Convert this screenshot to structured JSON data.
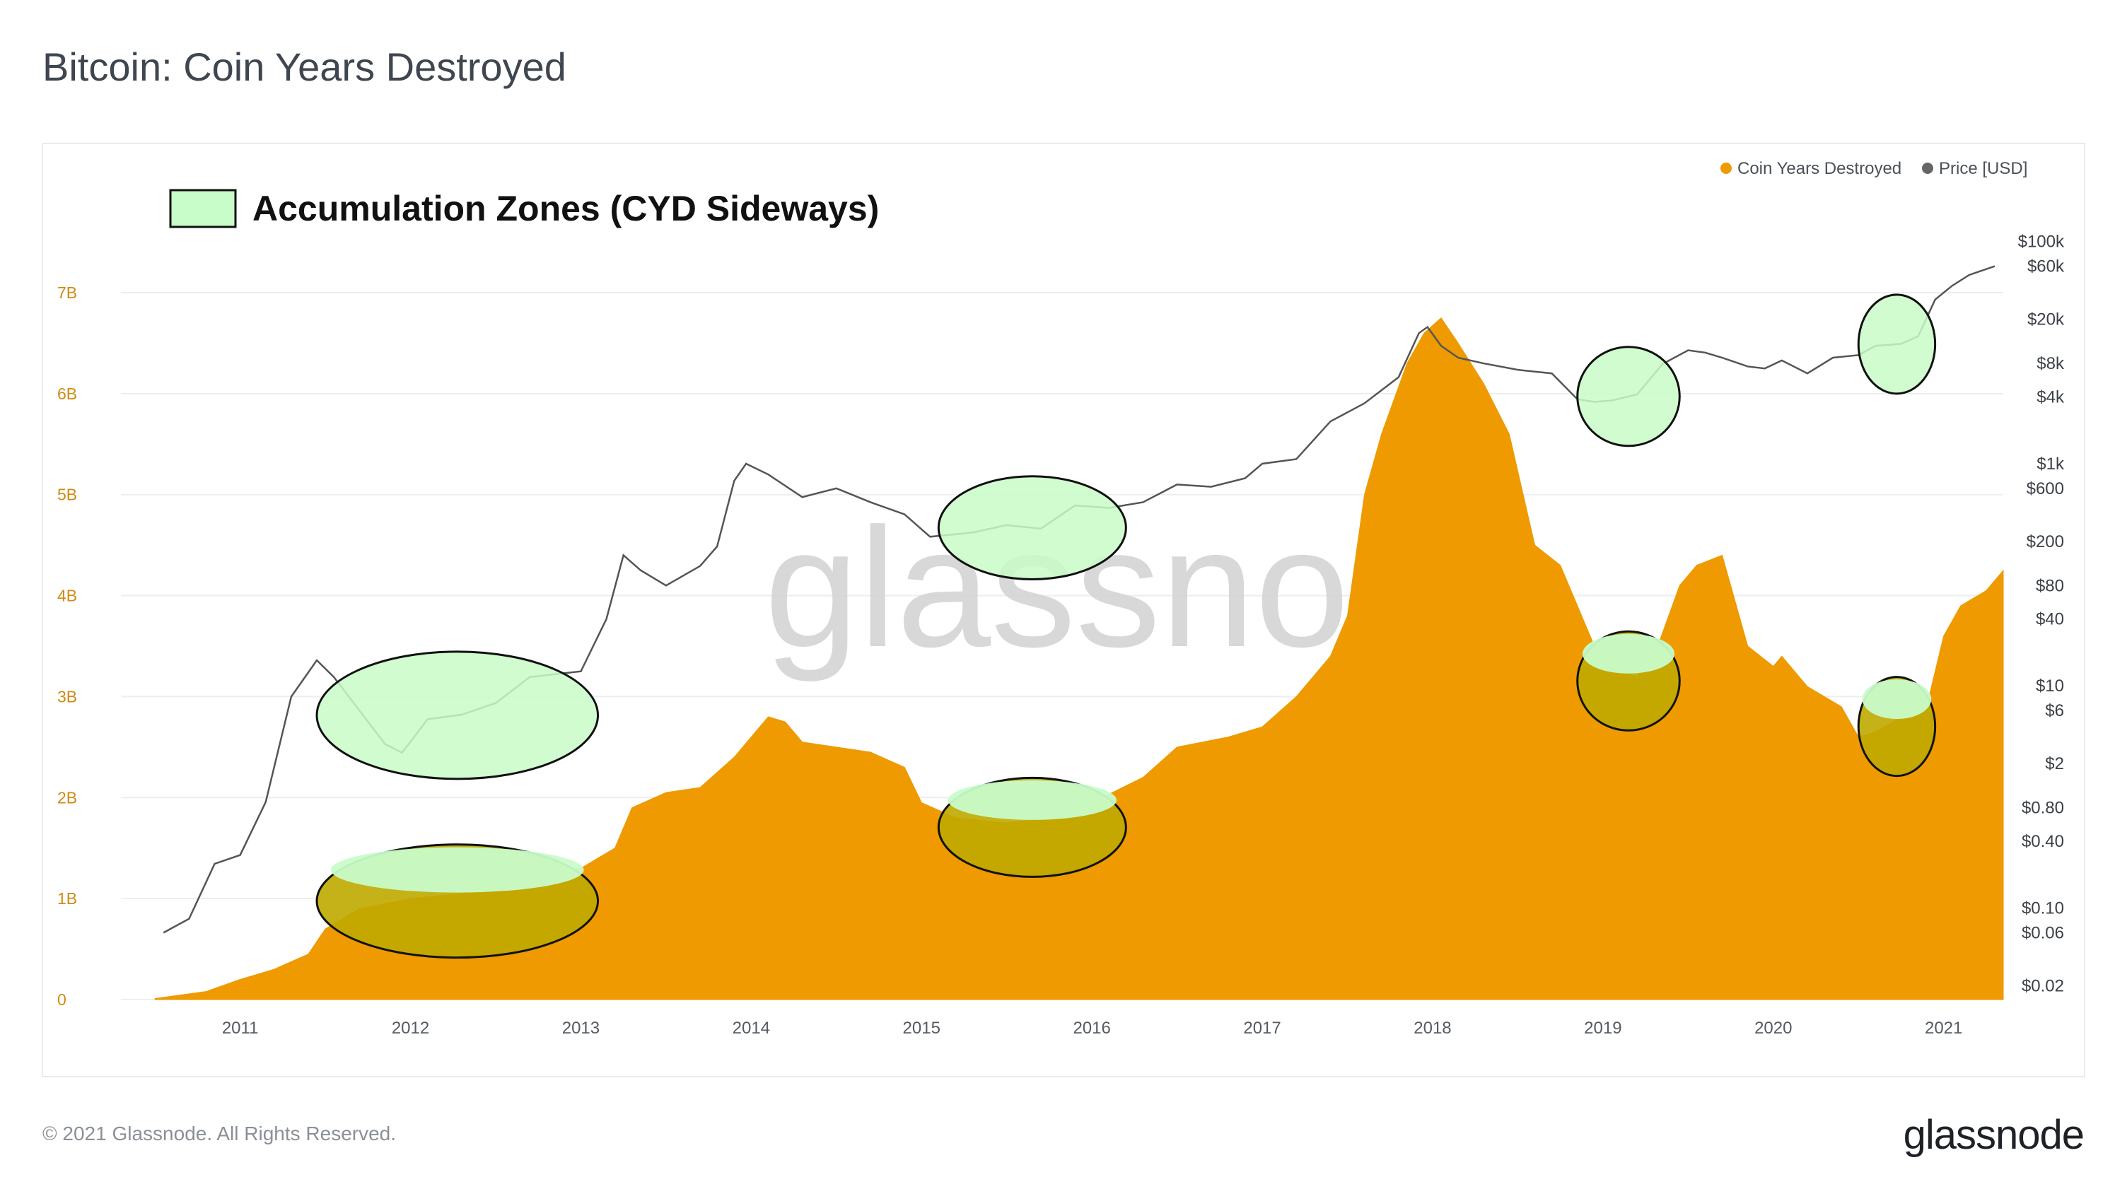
{
  "page": {
    "title": "Bitcoin: Coin Years Destroyed",
    "copyright": "© 2021 Glassnode. All Rights Reserved.",
    "logo": "glassnode",
    "watermark": "glassnode"
  },
  "chart_data": {
    "type": "area",
    "title": "Bitcoin: Coin Years Destroyed",
    "annotation_legend": "Accumulation Zones (CYD Sideways)",
    "legend_placement": "top-right",
    "grid": true,
    "x_ticks": [
      "2011",
      "2012",
      "2013",
      "2014",
      "2015",
      "2016",
      "2017",
      "2018",
      "2019",
      "2020",
      "2021"
    ],
    "x_range": [
      2010.3,
      2021.35
    ],
    "y_left": {
      "ticks": [
        "0",
        "1B",
        "2B",
        "3B",
        "4B",
        "5B",
        "6B",
        "7B"
      ],
      "values": [
        0,
        1,
        2,
        3,
        4,
        5,
        6,
        7
      ],
      "unit": "B",
      "range": [
        0,
        7.7
      ]
    },
    "y_right": {
      "scale": "log",
      "ticks": [
        "$0.02",
        "$0.06",
        "$0.10",
        "$0.40",
        "$0.80",
        "$2",
        "$6",
        "$10",
        "$40",
        "$80",
        "$200",
        "$600",
        "$1k",
        "$4k",
        "$8k",
        "$20k",
        "$60k",
        "$100k"
      ],
      "values": [
        0.02,
        0.06,
        0.1,
        0.4,
        0.8,
        2,
        6,
        10,
        40,
        80,
        200,
        600,
        1000,
        4000,
        8000,
        20000,
        60000,
        100000
      ]
    },
    "colors": {
      "cyd": "#ee9a00",
      "price": "#555555",
      "zone_fill": "#c8fcc8",
      "zone_overlap": "#bfaa00",
      "legend_price_dot": "#666666"
    },
    "series": [
      {
        "name": "Coin Years Destroyed",
        "axis": "left",
        "x": [
          2010.5,
          2010.8,
          2011.0,
          2011.2,
          2011.4,
          2011.5,
          2011.7,
          2012.0,
          2012.3,
          2012.5,
          2012.7,
          2013.0,
          2013.2,
          2013.3,
          2013.5,
          2013.7,
          2013.9,
          2014.0,
          2014.1,
          2014.2,
          2014.3,
          2014.5,
          2014.7,
          2014.9,
          2015.0,
          2015.2,
          2015.5,
          2015.8,
          2016.0,
          2016.3,
          2016.5,
          2016.8,
          2017.0,
          2017.2,
          2017.4,
          2017.5,
          2017.6,
          2017.7,
          2017.85,
          2017.95,
          2018.05,
          2018.15,
          2018.3,
          2018.45,
          2018.6,
          2018.75,
          2018.9,
          2019.0,
          2019.2,
          2019.3,
          2019.45,
          2019.55,
          2019.7,
          2019.85,
          2020.0,
          2020.05,
          2020.2,
          2020.4,
          2020.5,
          2020.6,
          2020.75,
          2020.9,
          2021.0,
          2021.1,
          2021.25,
          2021.35
        ],
        "values": [
          0.01,
          0.08,
          0.2,
          0.3,
          0.45,
          0.7,
          0.9,
          1.0,
          1.05,
          1.12,
          1.2,
          1.3,
          1.5,
          1.9,
          2.05,
          2.1,
          2.4,
          2.6,
          2.8,
          2.75,
          2.55,
          2.5,
          2.45,
          2.3,
          1.95,
          1.8,
          1.75,
          1.8,
          1.95,
          2.2,
          2.5,
          2.6,
          2.7,
          3.0,
          3.4,
          3.8,
          5.0,
          5.6,
          6.3,
          6.6,
          6.75,
          6.5,
          6.1,
          5.6,
          4.5,
          4.3,
          3.7,
          3.3,
          3.2,
          3.4,
          4.1,
          4.3,
          4.4,
          3.5,
          3.3,
          3.4,
          3.1,
          2.9,
          2.6,
          2.65,
          2.8,
          2.9,
          3.6,
          3.9,
          4.05,
          4.25
        ]
      },
      {
        "name": "Price [USD]",
        "axis": "right",
        "x": [
          2010.55,
          2010.7,
          2010.85,
          2011.0,
          2011.15,
          2011.3,
          2011.45,
          2011.55,
          2011.7,
          2011.85,
          2011.95,
          2012.1,
          2012.3,
          2012.5,
          2012.7,
          2012.9,
          2013.0,
          2013.15,
          2013.25,
          2013.35,
          2013.5,
          2013.7,
          2013.8,
          2013.9,
          2013.97,
          2014.1,
          2014.3,
          2014.5,
          2014.7,
          2014.9,
          2015.05,
          2015.3,
          2015.5,
          2015.7,
          2015.9,
          2016.1,
          2016.3,
          2016.5,
          2016.7,
          2016.9,
          2017.0,
          2017.2,
          2017.4,
          2017.6,
          2017.8,
          2017.92,
          2017.97,
          2018.05,
          2018.15,
          2018.3,
          2018.5,
          2018.7,
          2018.85,
          2018.95,
          2019.05,
          2019.2,
          2019.35,
          2019.5,
          2019.6,
          2019.7,
          2019.85,
          2019.95,
          2020.05,
          2020.2,
          2020.35,
          2020.5,
          2020.6,
          2020.75,
          2020.85,
          2020.95,
          2021.05,
          2021.15,
          2021.3
        ],
        "values": [
          0.06,
          0.08,
          0.25,
          0.3,
          0.9,
          8,
          17,
          12,
          6,
          3,
          2.5,
          5,
          5.5,
          7,
          12,
          13,
          13.5,
          40,
          150,
          110,
          80,
          120,
          180,
          700,
          1000,
          800,
          500,
          600,
          450,
          350,
          220,
          240,
          280,
          260,
          420,
          400,
          450,
          650,
          620,
          740,
          1000,
          1100,
          2400,
          3500,
          6000,
          15000,
          17000,
          11500,
          9000,
          8000,
          7000,
          6500,
          3800,
          3600,
          3700,
          4200,
          7900,
          10500,
          10000,
          9000,
          7500,
          7200,
          8500,
          6500,
          9000,
          9500,
          11500,
          12000,
          14000,
          30000,
          40000,
          50000,
          60000
        ]
      }
    ],
    "accumulation_zones": [
      {
        "x_start": 2011.45,
        "x_end": 2013.1
      },
      {
        "x_start": 2015.1,
        "x_end": 2016.2
      },
      {
        "x_start": 2018.85,
        "x_end": 2019.45
      },
      {
        "x_start": 2020.5,
        "x_end": 2020.95
      }
    ],
    "legend": [
      {
        "label": "Coin Years Destroyed",
        "color": "#ee9a00"
      },
      {
        "label": "Price [USD]",
        "color": "#666666"
      }
    ]
  }
}
